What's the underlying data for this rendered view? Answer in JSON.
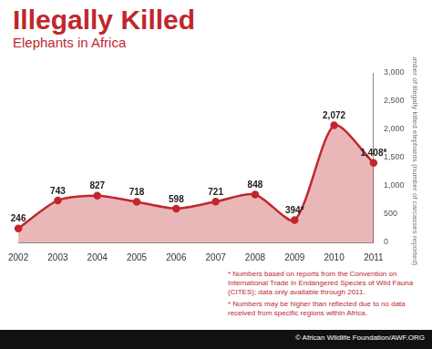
{
  "chart_data": {
    "type": "line",
    "title": "Illegally Killed",
    "subtitle": "Elephants in Africa",
    "y_label": "Number of illegally killed elephants (number of carcasses reported)",
    "categories": [
      "2002",
      "2003",
      "2004",
      "2005",
      "2006",
      "2007",
      "2008",
      "2009",
      "2010",
      "2011"
    ],
    "values": [
      246,
      743,
      827,
      718,
      598,
      721,
      848,
      394,
      2072,
      1408
    ],
    "value_labels": [
      "246",
      "743",
      "827",
      "718",
      "598",
      "721",
      "848",
      "394*",
      "2,072",
      "1,408*"
    ],
    "data_labels": true,
    "color": "#c0272d",
    "ylim": [
      0,
      3000
    ],
    "yticks": [
      0,
      500,
      {
        "value": 1000,
        "label": "1,000"
      },
      {
        "value": 1500,
        "label": "1,500"
      },
      {
        "value": 2000,
        "label": "2,000"
      },
      {
        "value": 2500,
        "label": "2,500"
      },
      {
        "value": 3000,
        "label": "3,000"
      }
    ],
    "grid": false,
    "notes": [
      "* Numbers based on reports from the Convention on International Trade in Endangered Species of Wild Fauna (CITES); data only available through 2011.",
      "* Numbers may be higher than reflected due to no data received from specific regions within Africa."
    ],
    "source": "© African Wildlife Foundation/AWF.ORG"
  }
}
